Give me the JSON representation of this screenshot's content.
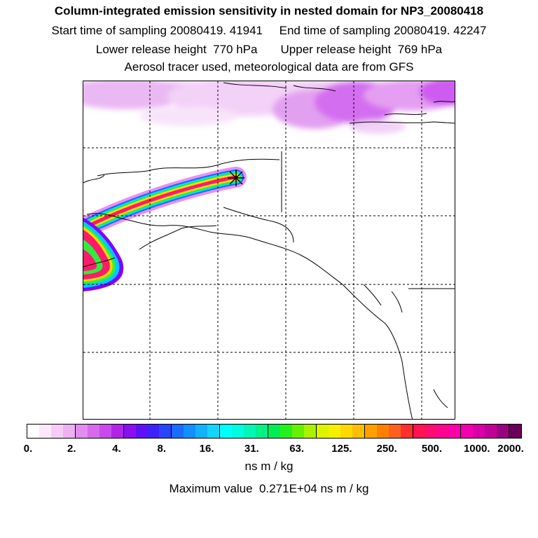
{
  "header": {
    "title": "Column-integrated emission sensitivity in nested domain for NP3_20080418",
    "sampling_line": "Start time of sampling 20080419. 41941     End time of sampling 20080419. 42247",
    "release_line": "Lower release height  770 hPa       Upper release height  769 hPa",
    "tracer_line": "Aerosol tracer used, meteorological data are from GFS"
  },
  "map": {
    "region": "Alaska / northwestern North America",
    "release_marker": "star-symbol",
    "plume_colors": [
      "#ff0080",
      "#ffd000",
      "#00ff40",
      "#00c0ff",
      "#8000ff",
      "#e040ff"
    ]
  },
  "colorbar": {
    "colors": [
      "#ffffff",
      "#fbe8fb",
      "#f5ccf7",
      "#eeb0f3",
      "#e28cf0",
      "#d56aee",
      "#c84aec",
      "#b324ea",
      "#8a10f0",
      "#5e12f4",
      "#3d22f7",
      "#2a44fb",
      "#1a6bff",
      "#1290ff",
      "#12b2ff",
      "#14d4ff",
      "#00ffff",
      "#00fde0",
      "#00f8b4",
      "#00f08a",
      "#00ee52",
      "#24f020",
      "#66f000",
      "#a8f200",
      "#dcf400",
      "#f6f000",
      "#ffd800",
      "#ffbe00",
      "#ffa000",
      "#ff8000",
      "#ff6020",
      "#ff3030",
      "#ff1450",
      "#ff0a70",
      "#ff0490",
      "#ff00a8",
      "#f000b0",
      "#d800a8",
      "#c00098",
      "#9a0080",
      "#6a005a"
    ],
    "tick_labels": [
      "0.",
      "2.",
      "4.",
      "8.",
      "16.",
      "31.",
      "63.",
      "125.",
      "250.",
      "500.",
      "1000.",
      "2000."
    ],
    "unit": "ns m / kg"
  },
  "footer": {
    "max_value_line": "Maximum value  0.271E+04 ns m / kg"
  }
}
